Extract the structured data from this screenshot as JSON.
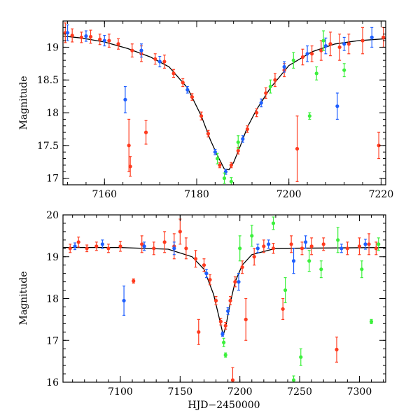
{
  "figure": {
    "colors": {
      "red": "#ff3b1f",
      "blue": "#1f5fff",
      "green": "#3cf03c",
      "model": "#000000"
    }
  },
  "chart_data": [
    {
      "type": "scatter",
      "panel": "top",
      "xlabel": "",
      "ylabel": "Magnitude",
      "xlim": [
        7151,
        7221
      ],
      "ylim": [
        19.4,
        16.9
      ],
      "y_inverted": true,
      "xticks": [
        7160,
        7180,
        7200,
        7220
      ],
      "xtick_labels": [
        "7160",
        "7180",
        "7200",
        "7220"
      ],
      "yticks": [
        17,
        17.5,
        18,
        18.5,
        19
      ],
      "ytick_labels": [
        "17",
        "17.5",
        "18",
        "18.5",
        "19"
      ],
      "model_curve": {
        "name": "model",
        "x": [
          7151,
          7155,
          7160,
          7165,
          7170,
          7174,
          7178,
          7181,
          7183,
          7184.5,
          7186,
          7187,
          7188,
          7189.5,
          7191,
          7193,
          7196,
          7200,
          7205,
          7210,
          7215,
          7221
        ],
        "y": [
          19.17,
          19.14,
          19.08,
          18.98,
          18.85,
          18.7,
          18.38,
          17.95,
          17.58,
          17.35,
          17.14,
          17.13,
          17.24,
          17.5,
          17.78,
          18.05,
          18.38,
          18.72,
          18.93,
          19.05,
          19.1,
          19.13
        ]
      },
      "series": [
        {
          "name": "red",
          "color": "#ff3b1f",
          "points": [
            {
              "x": 7151.5,
              "y": 19.22,
              "e": 0.15
            },
            {
              "x": 7153,
              "y": 19.18,
              "e": 0.1
            },
            {
              "x": 7155,
              "y": 19.15,
              "e": 0.08
            },
            {
              "x": 7157,
              "y": 19.16,
              "e": 0.1
            },
            {
              "x": 7159,
              "y": 19.12,
              "e": 0.08
            },
            {
              "x": 7161,
              "y": 19.1,
              "e": 0.1
            },
            {
              "x": 7163,
              "y": 19.05,
              "e": 0.08
            },
            {
              "x": 7165.3,
              "y": 17.5,
              "e": 0.4
            },
            {
              "x": 7165.6,
              "y": 17.18,
              "e": 0.15
            },
            {
              "x": 7166,
              "y": 18.95,
              "e": 0.1
            },
            {
              "x": 7168,
              "y": 18.9,
              "e": 0.12
            },
            {
              "x": 7169,
              "y": 17.7,
              "e": 0.18
            },
            {
              "x": 7171,
              "y": 18.82,
              "e": 0.08
            },
            {
              "x": 7173,
              "y": 18.78,
              "e": 0.1
            },
            {
              "x": 7175,
              "y": 18.6,
              "e": 0.06
            },
            {
              "x": 7177,
              "y": 18.46,
              "e": 0.06
            },
            {
              "x": 7179,
              "y": 18.24,
              "e": 0.05
            },
            {
              "x": 7181,
              "y": 17.95,
              "e": 0.06
            },
            {
              "x": 7182.5,
              "y": 17.68,
              "e": 0.05
            },
            {
              "x": 7185,
              "y": 17.2,
              "e": 0.04
            },
            {
              "x": 7187.5,
              "y": 17.2,
              "e": 0.04
            },
            {
              "x": 7189,
              "y": 17.42,
              "e": 0.05
            },
            {
              "x": 7191,
              "y": 17.75,
              "e": 0.05
            },
            {
              "x": 7193,
              "y": 18.0,
              "e": 0.06
            },
            {
              "x": 7195,
              "y": 18.3,
              "e": 0.08
            },
            {
              "x": 7197,
              "y": 18.5,
              "e": 0.1
            },
            {
              "x": 7199,
              "y": 18.65,
              "e": 0.1
            },
            {
              "x": 7201.8,
              "y": 17.45,
              "e": 0.5
            },
            {
              "x": 7203,
              "y": 18.85,
              "e": 0.12
            },
            {
              "x": 7205,
              "y": 18.9,
              "e": 0.12
            },
            {
              "x": 7207,
              "y": 18.95,
              "e": 0.15
            },
            {
              "x": 7209,
              "y": 19.05,
              "e": 0.18
            },
            {
              "x": 7211,
              "y": 19.0,
              "e": 0.2
            },
            {
              "x": 7213,
              "y": 19.05,
              "e": 0.15
            },
            {
              "x": 7216,
              "y": 19.1,
              "e": 0.2
            },
            {
              "x": 7219.5,
              "y": 17.5,
              "e": 0.2
            },
            {
              "x": 7220.5,
              "y": 19.15,
              "e": 0.15
            }
          ]
        },
        {
          "name": "blue",
          "color": "#1f5fff",
          "points": [
            {
              "x": 7152,
              "y": 19.22,
              "e": 0.12
            },
            {
              "x": 7156,
              "y": 19.17,
              "e": 0.08
            },
            {
              "x": 7160,
              "y": 19.1,
              "e": 0.08
            },
            {
              "x": 7164.5,
              "y": 18.2,
              "e": 0.2
            },
            {
              "x": 7168,
              "y": 18.95,
              "e": 0.1
            },
            {
              "x": 7172,
              "y": 18.78,
              "e": 0.08
            },
            {
              "x": 7178,
              "y": 18.35,
              "e": 0.05
            },
            {
              "x": 7184,
              "y": 17.4,
              "e": 0.04
            },
            {
              "x": 7186.3,
              "y": 17.1,
              "e": 0.04
            },
            {
              "x": 7190,
              "y": 17.6,
              "e": 0.05
            },
            {
              "x": 7194,
              "y": 18.15,
              "e": 0.06
            },
            {
              "x": 7199,
              "y": 18.7,
              "e": 0.08
            },
            {
              "x": 7204,
              "y": 18.9,
              "e": 0.12
            },
            {
              "x": 7208,
              "y": 19.02,
              "e": 0.12
            },
            {
              "x": 7210.5,
              "y": 18.1,
              "e": 0.2
            },
            {
              "x": 7212,
              "y": 19.05,
              "e": 0.1
            },
            {
              "x": 7218,
              "y": 19.15,
              "e": 0.15
            }
          ]
        },
        {
          "name": "green",
          "color": "#3cf03c",
          "points": [
            {
              "x": 7184.5,
              "y": 17.3,
              "e": 0.08
            },
            {
              "x": 7186,
              "y": 17.0,
              "e": 0.08
            },
            {
              "x": 7187.5,
              "y": 16.95,
              "e": 0.06
            },
            {
              "x": 7189,
              "y": 17.55,
              "e": 0.1
            },
            {
              "x": 7196,
              "y": 18.4,
              "e": 0.1
            },
            {
              "x": 7201,
              "y": 18.8,
              "e": 0.12
            },
            {
              "x": 7204.5,
              "y": 17.95,
              "e": 0.05
            },
            {
              "x": 7206,
              "y": 18.6,
              "e": 0.1
            },
            {
              "x": 7207.5,
              "y": 19.1,
              "e": 0.15
            },
            {
              "x": 7212,
              "y": 18.65,
              "e": 0.1
            }
          ]
        }
      ]
    },
    {
      "type": "scatter",
      "panel": "bottom",
      "xlabel": "HJD−2450000",
      "ylabel": "Magnitude",
      "xlim": [
        7052,
        7322
      ],
      "ylim": [
        20,
        16
      ],
      "y_inverted": true,
      "xticks": [
        7100,
        7150,
        7200,
        7250,
        7300
      ],
      "xtick_labels": [
        "7100",
        "7150",
        "7200",
        "7250",
        "7300"
      ],
      "yticks": [
        16,
        17,
        18,
        19,
        20
      ],
      "ytick_labels": [
        "16",
        "17",
        "18",
        "19",
        "20"
      ],
      "model_curve": {
        "name": "model",
        "x": [
          7052,
          7100,
          7140,
          7160,
          7170,
          7178,
          7183,
          7186,
          7188,
          7192,
          7196,
          7202,
          7210,
          7230,
          7322
        ],
        "y": [
          19.22,
          19.22,
          19.18,
          19.0,
          18.7,
          18.1,
          17.5,
          17.13,
          17.3,
          17.9,
          18.4,
          18.8,
          19.05,
          19.2,
          19.22
        ]
      },
      "series": [
        {
          "name": "red",
          "color": "#ff3b1f",
          "points": [
            {
              "x": 7058,
              "y": 19.2,
              "e": 0.1
            },
            {
              "x": 7065,
              "y": 19.35,
              "e": 0.12
            },
            {
              "x": 7072,
              "y": 19.2,
              "e": 0.08
            },
            {
              "x": 7080,
              "y": 19.25,
              "e": 0.1
            },
            {
              "x": 7090,
              "y": 19.2,
              "e": 0.1
            },
            {
              "x": 7100,
              "y": 19.25,
              "e": 0.12
            },
            {
              "x": 7111,
              "y": 18.42,
              "e": 0.05
            },
            {
              "x": 7118,
              "y": 19.3,
              "e": 0.2
            },
            {
              "x": 7128,
              "y": 19.2,
              "e": 0.15
            },
            {
              "x": 7137,
              "y": 19.35,
              "e": 0.25
            },
            {
              "x": 7145,
              "y": 19.25,
              "e": 0.3
            },
            {
              "x": 7150,
              "y": 19.6,
              "e": 0.3
            },
            {
              "x": 7155,
              "y": 19.2,
              "e": 0.25
            },
            {
              "x": 7163,
              "y": 18.95,
              "e": 0.2
            },
            {
              "x": 7165.5,
              "y": 17.2,
              "e": 0.3
            },
            {
              "x": 7170,
              "y": 18.8,
              "e": 0.15
            },
            {
              "x": 7175,
              "y": 18.45,
              "e": 0.12
            },
            {
              "x": 7180,
              "y": 17.95,
              "e": 0.1
            },
            {
              "x": 7184,
              "y": 17.45,
              "e": 0.08
            },
            {
              "x": 7188,
              "y": 17.35,
              "e": 0.08
            },
            {
              "x": 7192,
              "y": 17.95,
              "e": 0.1
            },
            {
              "x": 7194,
              "y": 16.05,
              "e": 0.3
            },
            {
              "x": 7196,
              "y": 18.4,
              "e": 0.12
            },
            {
              "x": 7202,
              "y": 18.75,
              "e": 0.15
            },
            {
              "x": 7205,
              "y": 17.5,
              "e": 0.5
            },
            {
              "x": 7212,
              "y": 19.0,
              "e": 0.2
            },
            {
              "x": 7220,
              "y": 19.25,
              "e": 0.15
            },
            {
              "x": 7228,
              "y": 19.2,
              "e": 0.12
            },
            {
              "x": 7236,
              "y": 17.75,
              "e": 0.25
            },
            {
              "x": 7243,
              "y": 19.3,
              "e": 0.2
            },
            {
              "x": 7252,
              "y": 19.2,
              "e": 0.15
            },
            {
              "x": 7260,
              "y": 19.25,
              "e": 0.2
            },
            {
              "x": 7270,
              "y": 19.3,
              "e": 0.15
            },
            {
              "x": 7281,
              "y": 16.78,
              "e": 0.3
            },
            {
              "x": 7290,
              "y": 19.2,
              "e": 0.15
            },
            {
              "x": 7300,
              "y": 19.25,
              "e": 0.2
            },
            {
              "x": 7308,
              "y": 19.3,
              "e": 0.25
            },
            {
              "x": 7314,
              "y": 19.2,
              "e": 0.15
            }
          ]
        },
        {
          "name": "blue",
          "color": "#1f5fff",
          "points": [
            {
              "x": 7062,
              "y": 19.25,
              "e": 0.08
            },
            {
              "x": 7085,
              "y": 19.3,
              "e": 0.1
            },
            {
              "x": 7103,
              "y": 17.95,
              "e": 0.35
            },
            {
              "x": 7120,
              "y": 19.25,
              "e": 0.1
            },
            {
              "x": 7145,
              "y": 19.2,
              "e": 0.15
            },
            {
              "x": 7172,
              "y": 18.6,
              "e": 0.1
            },
            {
              "x": 7185.5,
              "y": 17.15,
              "e": 0.05
            },
            {
              "x": 7190,
              "y": 17.7,
              "e": 0.08
            },
            {
              "x": 7199,
              "y": 18.4,
              "e": 0.2
            },
            {
              "x": 7215,
              "y": 19.2,
              "e": 0.1
            },
            {
              "x": 7224,
              "y": 19.3,
              "e": 0.1
            },
            {
              "x": 7245,
              "y": 18.9,
              "e": 0.3
            },
            {
              "x": 7255,
              "y": 19.35,
              "e": 0.15
            },
            {
              "x": 7285,
              "y": 19.2,
              "e": 0.1
            },
            {
              "x": 7305,
              "y": 19.3,
              "e": 0.12
            }
          ]
        },
        {
          "name": "green",
          "color": "#3cf03c",
          "points": [
            {
              "x": 7186.5,
              "y": 16.95,
              "e": 0.1
            },
            {
              "x": 7188,
              "y": 16.65,
              "e": 0.05
            },
            {
              "x": 7200,
              "y": 19.2,
              "e": 0.3
            },
            {
              "x": 7210,
              "y": 19.5,
              "e": 0.25
            },
            {
              "x": 7228,
              "y": 19.8,
              "e": 0.15
            },
            {
              "x": 7238,
              "y": 18.2,
              "e": 0.3
            },
            {
              "x": 7245,
              "y": 16.05,
              "e": 0.1
            },
            {
              "x": 7251,
              "y": 16.6,
              "e": 0.2
            },
            {
              "x": 7258,
              "y": 18.9,
              "e": 0.25
            },
            {
              "x": 7268,
              "y": 18.7,
              "e": 0.2
            },
            {
              "x": 7282,
              "y": 19.4,
              "e": 0.3
            },
            {
              "x": 7302,
              "y": 18.7,
              "e": 0.2
            },
            {
              "x": 7310,
              "y": 17.45,
              "e": 0.05
            },
            {
              "x": 7316,
              "y": 19.3,
              "e": 0.15
            }
          ]
        }
      ]
    }
  ]
}
